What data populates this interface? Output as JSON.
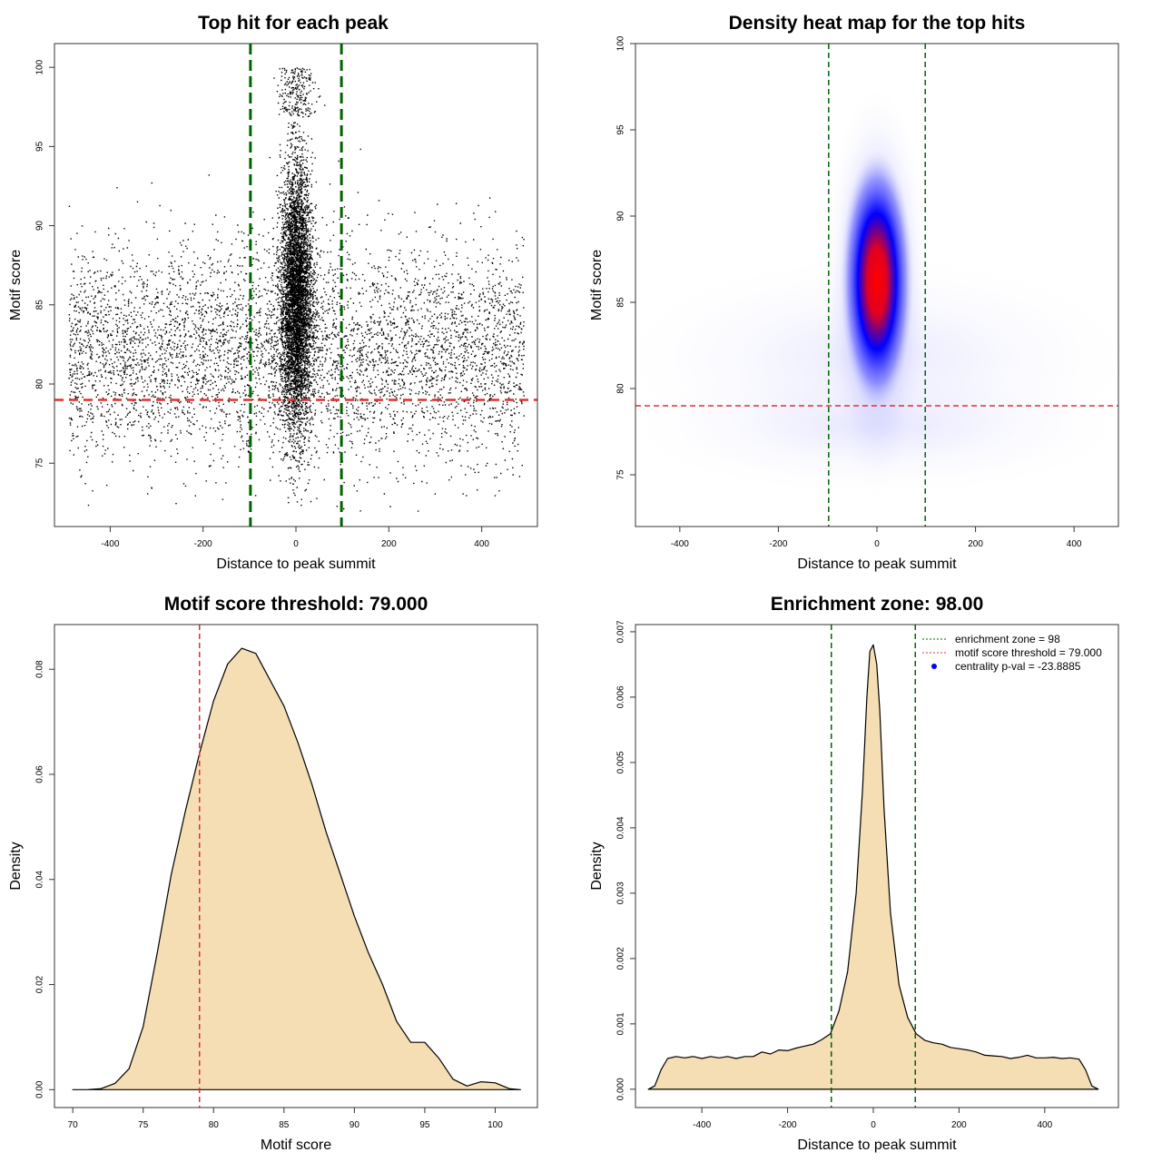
{
  "chart_data": [
    {
      "id": "scatter",
      "type": "scatter",
      "title": "Top hit for each peak",
      "xlabel": "Distance to peak summit",
      "ylabel": "Motif score",
      "xlim": [
        -520,
        520
      ],
      "ylim": [
        71,
        101.5
      ],
      "xticks": [
        -400,
        -200,
        0,
        200,
        400
      ],
      "yticks": [
        75,
        80,
        85,
        90,
        95,
        100
      ],
      "points_description_range": {
        "x": [
          -490,
          490
        ],
        "y": [
          72,
          100
        ]
      },
      "vlines": [
        -98,
        98
      ],
      "hline": 79,
      "line_colors": {
        "vline": "#006400",
        "hline": "#e03030",
        "points": "#000000"
      }
    },
    {
      "id": "heatmap",
      "type": "heatmap",
      "title": "Density heat map for the top hits",
      "xlabel": "Distance to peak summit",
      "ylabel": "Motif score",
      "xlim": [
        -490,
        490
      ],
      "ylim": [
        72,
        100
      ],
      "xticks": [
        -400,
        -200,
        0,
        200,
        400
      ],
      "yticks": [
        75,
        80,
        85,
        90,
        95,
        100
      ],
      "peak": {
        "x": 0,
        "y": 86
      },
      "vlines": [
        -98,
        98
      ],
      "hline": 79,
      "colors": [
        "#ffffff",
        "#0000ff",
        "#ff0000"
      ]
    },
    {
      "id": "score-density",
      "type": "area",
      "title": "Motif score threshold: 79.000",
      "xlabel": "Motif score",
      "ylabel": "Density",
      "xlim": [
        68.7,
        103
      ],
      "ylim": [
        -0.0034,
        0.0885
      ],
      "xticks": [
        70,
        75,
        80,
        85,
        90,
        95,
        100
      ],
      "yticks": [
        0.0,
        0.02,
        0.04,
        0.06,
        0.08
      ],
      "ytick_labels": [
        "0.00",
        "0.02",
        "0.04",
        "0.06",
        "0.08"
      ],
      "x": [
        70,
        71,
        72,
        73,
        74,
        75,
        76,
        77,
        78,
        79,
        80,
        81,
        82,
        83,
        84,
        85,
        86,
        87,
        88,
        89,
        90,
        91,
        92,
        93,
        94,
        95,
        96,
        97,
        98,
        99,
        100,
        101,
        101.8
      ],
      "values": [
        0.0,
        0.0,
        0.0002,
        0.0012,
        0.004,
        0.012,
        0.026,
        0.041,
        0.053,
        0.064,
        0.074,
        0.081,
        0.084,
        0.083,
        0.078,
        0.073,
        0.066,
        0.058,
        0.049,
        0.041,
        0.033,
        0.026,
        0.02,
        0.013,
        0.009,
        0.009,
        0.006,
        0.002,
        0.0007,
        0.0015,
        0.0013,
        0.0002,
        0.0
      ],
      "vline": 79,
      "fill": "#f5deb3",
      "line_color": "#e03030"
    },
    {
      "id": "distance-density",
      "type": "area",
      "title": "Enrichment zone: 98.00",
      "xlabel": "Distance to peak summit",
      "ylabel": "Density",
      "xlim": [
        -555,
        572
      ],
      "ylim": [
        -0.00028,
        0.00711
      ],
      "xticks": [
        -400,
        -200,
        0,
        200,
        400
      ],
      "yticks": [
        0.0,
        0.001,
        0.002,
        0.003,
        0.004,
        0.005,
        0.006,
        0.007
      ],
      "ytick_labels": [
        "0.000",
        "0.001",
        "0.002",
        "0.003",
        "0.004",
        "0.005",
        "0.006",
        "0.007"
      ],
      "x": [
        -525,
        -510,
        -495,
        -480,
        -460,
        -440,
        -420,
        -400,
        -380,
        -360,
        -340,
        -320,
        -300,
        -280,
        -260,
        -240,
        -220,
        -200,
        -180,
        -160,
        -140,
        -120,
        -100,
        -80,
        -60,
        -40,
        -25,
        -15,
        -8,
        0,
        8,
        15,
        25,
        40,
        60,
        80,
        100,
        120,
        140,
        160,
        180,
        200,
        220,
        240,
        260,
        280,
        300,
        320,
        340,
        360,
        380,
        400,
        420,
        440,
        460,
        480,
        495,
        510,
        525
      ],
      "values": [
        0.0,
        5e-05,
        0.0003,
        0.00047,
        0.0005,
        0.00048,
        0.0005,
        0.00047,
        0.0005,
        0.00048,
        0.0005,
        0.00047,
        0.0005,
        0.0005,
        0.00057,
        0.00054,
        0.0006,
        0.00059,
        0.00063,
        0.00066,
        0.00069,
        0.00076,
        0.00085,
        0.0012,
        0.0018,
        0.003,
        0.0046,
        0.006,
        0.0067,
        0.0068,
        0.0065,
        0.0058,
        0.0043,
        0.0027,
        0.0016,
        0.0011,
        0.00085,
        0.00075,
        0.00071,
        0.00069,
        0.00064,
        0.00062,
        0.0006,
        0.00057,
        0.00052,
        0.00051,
        0.0005,
        0.00047,
        0.00049,
        0.00052,
        0.00048,
        0.00048,
        0.00049,
        0.00047,
        0.00048,
        0.00046,
        0.0003,
        5e-05,
        0.0
      ],
      "vlines": [
        -98,
        98
      ],
      "fill": "#f5deb3",
      "line_color": "#006400",
      "legend": {
        "placement": "top-right",
        "entries": [
          {
            "label": "enrichment zone = 98",
            "color": "#006400",
            "style": "dotted-line"
          },
          {
            "label": "motif score threshold = 79.000",
            "color": "#e03030",
            "style": "dotted-line"
          },
          {
            "label": "centrality p-val = -23.8885",
            "color": "#0000ff",
            "style": "point"
          }
        ]
      }
    }
  ]
}
